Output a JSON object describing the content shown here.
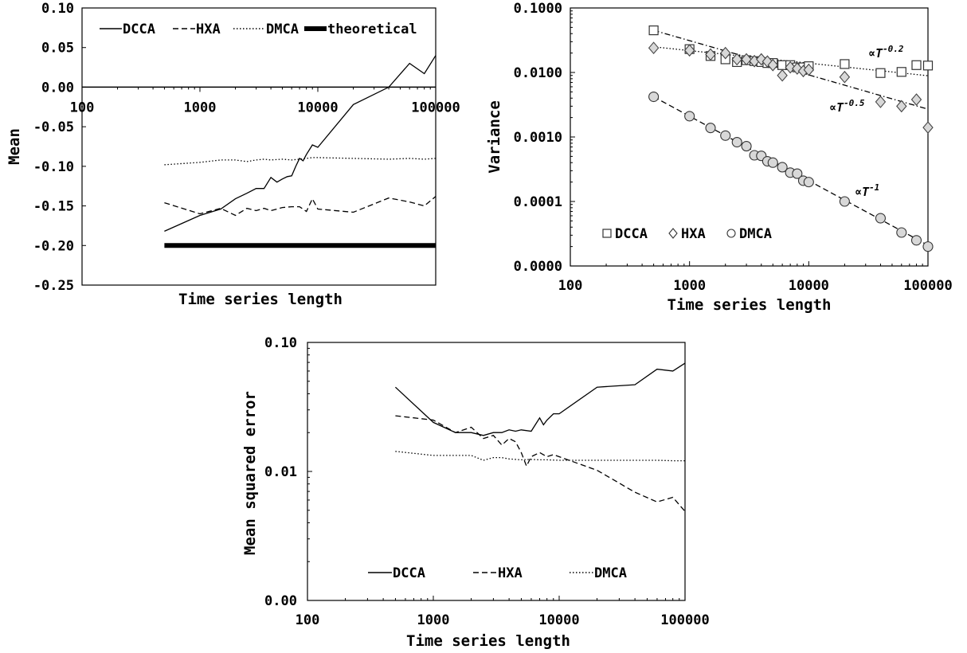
{
  "chart_data": [
    {
      "id": "mean",
      "type": "line",
      "xscale": "log",
      "xlim": [
        100,
        100000
      ],
      "ylim": [
        -0.25,
        0.1
      ],
      "xticks": [
        "100",
        "1000",
        "10000",
        "100000"
      ],
      "yticks": [
        "0.10",
        "0.05",
        "0.00",
        "-0.05",
        "-0.10",
        "-0.15",
        "-0.20",
        "-0.25"
      ],
      "xlabel": "Time series length",
      "ylabel": "Mean",
      "legend_position": "top",
      "series": [
        {
          "name": "DCCA",
          "style": "solid",
          "x": [
            500,
            1000,
            1500,
            2000,
            2500,
            3000,
            3500,
            4000,
            4500,
            5000,
            5500,
            6000,
            6500,
            7000,
            7500,
            8000,
            9000,
            10000,
            20000,
            40000,
            60000,
            80000,
            100000
          ],
          "y": [
            -0.182,
            -0.162,
            -0.154,
            -0.141,
            -0.134,
            -0.128,
            -0.128,
            -0.114,
            -0.12,
            -0.116,
            -0.113,
            -0.112,
            -0.1,
            -0.09,
            -0.093,
            -0.085,
            -0.073,
            -0.076,
            -0.022,
            0.0,
            0.03,
            0.017,
            0.04
          ]
        },
        {
          "name": "HXA",
          "style": "dashed",
          "x": [
            500,
            1000,
            1500,
            2000,
            2500,
            3000,
            3500,
            4000,
            4500,
            5000,
            6000,
            7000,
            8000,
            9000,
            10000,
            20000,
            40000,
            60000,
            80000,
            100000
          ],
          "y": [
            -0.146,
            -0.16,
            -0.153,
            -0.162,
            -0.153,
            -0.156,
            -0.153,
            -0.156,
            -0.154,
            -0.152,
            -0.151,
            -0.151,
            -0.157,
            -0.141,
            -0.154,
            -0.158,
            -0.14,
            -0.145,
            -0.15,
            -0.138
          ]
        },
        {
          "name": "DMCA",
          "style": "dotted",
          "x": [
            500,
            1000,
            1500,
            2000,
            2500,
            3000,
            3500,
            4000,
            5000,
            6000,
            7000,
            8000,
            9000,
            10000,
            20000,
            40000,
            60000,
            80000,
            100000
          ],
          "y": [
            -0.098,
            -0.095,
            -0.092,
            -0.092,
            -0.094,
            -0.092,
            -0.091,
            -0.092,
            -0.091,
            -0.092,
            -0.091,
            -0.09,
            -0.089,
            -0.089,
            -0.09,
            -0.091,
            -0.09,
            -0.091,
            -0.09
          ]
        },
        {
          "name": "theoretical",
          "style": "thick",
          "x": [
            500,
            100000
          ],
          "y": [
            -0.2,
            -0.2
          ]
        }
      ]
    },
    {
      "id": "variance",
      "type": "scatter",
      "xscale": "log",
      "yscale": "log",
      "xlim": [
        100,
        100000
      ],
      "yticks": [
        "0.1000",
        "0.0100",
        "0.0010",
        "0.0001",
        "0.0000"
      ],
      "xticks": [
        "100",
        "1000",
        "10000",
        "100000"
      ],
      "xlabel": "Time series length",
      "ylabel": "Variance",
      "legend_position": "bottom-left",
      "annotations": [
        {
          "prefix": "∝T",
          "exponent": "-0.2"
        },
        {
          "prefix": "∝T",
          "exponent": "-0.5"
        },
        {
          "prefix": "∝T",
          "exponent": "-1"
        }
      ],
      "series": [
        {
          "name": "DCCA",
          "marker": "square",
          "x": [
            500,
            1000,
            1500,
            2000,
            2500,
            3000,
            3500,
            4000,
            4500,
            5000,
            6000,
            7000,
            8000,
            9000,
            10000,
            20000,
            40000,
            60000,
            80000,
            100000
          ],
          "y": [
            0.045,
            0.023,
            0.018,
            0.016,
            0.0145,
            0.0155,
            0.015,
            0.0145,
            0.014,
            0.014,
            0.013,
            0.013,
            0.012,
            0.012,
            0.0125,
            0.0135,
            0.0098,
            0.0102,
            0.013,
            0.0128
          ]
        },
        {
          "name": "HXA",
          "marker": "diamond",
          "x": [
            500,
            1000,
            1500,
            2000,
            2500,
            3000,
            3500,
            4000,
            4500,
            5000,
            6000,
            7000,
            8000,
            9000,
            10000,
            20000,
            40000,
            60000,
            80000,
            100000
          ],
          "y": [
            0.024,
            0.022,
            0.019,
            0.02,
            0.016,
            0.016,
            0.015,
            0.016,
            0.0148,
            0.013,
            0.009,
            0.012,
            0.0115,
            0.0105,
            0.011,
            0.0085,
            0.0035,
            0.003,
            0.0038,
            0.0014
          ]
        },
        {
          "name": "DMCA",
          "marker": "circle",
          "x": [
            500,
            1000,
            1500,
            2000,
            2500,
            3000,
            3500,
            4000,
            4500,
            5000,
            6000,
            7000,
            8000,
            9000,
            10000,
            20000,
            40000,
            60000,
            80000,
            100000
          ],
          "y": [
            0.0042,
            0.0021,
            0.00138,
            0.00105,
            0.00083,
            0.00072,
            0.00052,
            0.00051,
            0.00042,
            0.0004,
            0.00034,
            0.00028,
            0.00027,
            0.00021,
            0.0002,
            0.0001,
            5.5e-05,
            3.3e-05,
            2.5e-05,
            2e-05
          ]
        }
      ],
      "fits": [
        {
          "for": "DCCA",
          "style": "dash-dot",
          "x": [
            500,
            100000
          ],
          "y": [
            0.045,
            0.0027
          ]
        },
        {
          "for": "HXA",
          "style": "dotted",
          "x": [
            500,
            100000
          ],
          "y": [
            0.025,
            0.0089
          ]
        },
        {
          "for": "DMCA",
          "style": "dashed",
          "x": [
            500,
            100000
          ],
          "y": [
            0.0042,
            2.1e-05
          ]
        }
      ]
    },
    {
      "id": "mse",
      "type": "line",
      "xscale": "log",
      "xlim": [
        100,
        100000
      ],
      "yticks": [
        "0.10",
        "0.01",
        "0.00"
      ],
      "xticks": [
        "100",
        "1000",
        "10000",
        "100000"
      ],
      "xlabel": "Time series length",
      "ylabel": "Mean squared error",
      "legend_position": "bottom",
      "series": [
        {
          "name": "DCCA",
          "style": "solid",
          "x": [
            500,
            1000,
            1500,
            2000,
            2500,
            3000,
            3500,
            4000,
            4500,
            5000,
            6000,
            7000,
            7500,
            8000,
            9000,
            10000,
            20000,
            40000,
            60000,
            80000,
            100000
          ],
          "y": [
            0.045,
            0.024,
            0.02,
            0.02,
            0.019,
            0.02,
            0.02,
            0.021,
            0.0205,
            0.021,
            0.0205,
            0.026,
            0.023,
            0.025,
            0.028,
            0.028,
            0.045,
            0.047,
            0.062,
            0.06,
            0.069
          ]
        },
        {
          "name": "HXA",
          "style": "dashed",
          "x": [
            500,
            1000,
            1500,
            2000,
            2500,
            3000,
            3500,
            4000,
            4500,
            5000,
            5500,
            6000,
            7000,
            8000,
            9000,
            10000,
            20000,
            40000,
            60000,
            80000,
            100000
          ],
          "y": [
            0.027,
            0.025,
            0.02,
            0.022,
            0.018,
            0.019,
            0.016,
            0.018,
            0.017,
            0.014,
            0.011,
            0.013,
            0.014,
            0.013,
            0.0135,
            0.013,
            0.0102,
            0.0069,
            0.0058,
            0.0063,
            0.0049
          ]
        },
        {
          "name": "DMCA",
          "style": "dotted",
          "x": [
            500,
            1000,
            1500,
            2000,
            2500,
            3000,
            3500,
            4000,
            5000,
            6000,
            7000,
            8000,
            10000,
            20000,
            40000,
            60000,
            80000,
            100000
          ],
          "y": [
            0.0143,
            0.0133,
            0.0133,
            0.0133,
            0.0122,
            0.0128,
            0.0128,
            0.0125,
            0.0123,
            0.0124,
            0.0123,
            0.0123,
            0.0122,
            0.0122,
            0.0122,
            0.0122,
            0.0121,
            0.0121
          ]
        }
      ]
    }
  ]
}
